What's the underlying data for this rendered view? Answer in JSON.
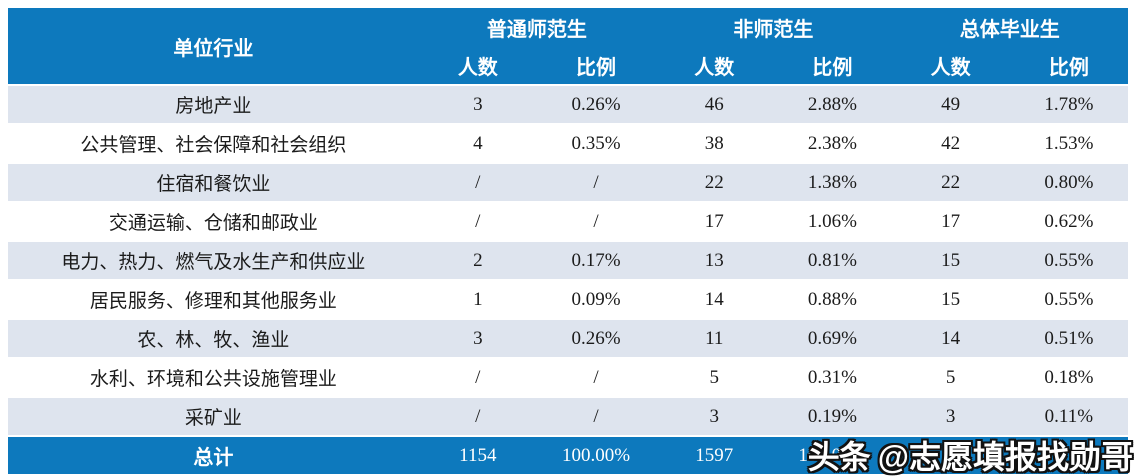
{
  "colors": {
    "header_bg": "#0d79bd",
    "stripe_bg": "#dee4ee",
    "row_bg": "#ffffff",
    "total_bg": "#0d79bd",
    "header_text": "#ffffff",
    "body_text": "#1b1b1b"
  },
  "chart_data": {
    "type": "table",
    "header": {
      "industry_label": "单位行业",
      "groups": [
        "普通师范生",
        "非师范生",
        "总体毕业生"
      ],
      "sub_labels": [
        "人数",
        "比例",
        "人数",
        "比例",
        "人数",
        "比例"
      ]
    },
    "rows": [
      {
        "industry": "房地产业",
        "cells": [
          "3",
          "0.26%",
          "46",
          "2.88%",
          "49",
          "1.78%"
        ]
      },
      {
        "industry": "公共管理、社会保障和社会组织",
        "cells": [
          "4",
          "0.35%",
          "38",
          "2.38%",
          "42",
          "1.53%"
        ]
      },
      {
        "industry": "住宿和餐饮业",
        "cells": [
          "/",
          "/",
          "22",
          "1.38%",
          "22",
          "0.80%"
        ]
      },
      {
        "industry": "交通运输、仓储和邮政业",
        "cells": [
          "/",
          "/",
          "17",
          "1.06%",
          "17",
          "0.62%"
        ]
      },
      {
        "industry": "电力、热力、燃气及水生产和供应业",
        "cells": [
          "2",
          "0.17%",
          "13",
          "0.81%",
          "15",
          "0.55%"
        ]
      },
      {
        "industry": "居民服务、修理和其他服务业",
        "cells": [
          "1",
          "0.09%",
          "14",
          "0.88%",
          "15",
          "0.55%"
        ]
      },
      {
        "industry": "农、林、牧、渔业",
        "cells": [
          "3",
          "0.26%",
          "11",
          "0.69%",
          "14",
          "0.51%"
        ]
      },
      {
        "industry": "水利、环境和公共设施管理业",
        "cells": [
          "/",
          "/",
          "5",
          "0.31%",
          "5",
          "0.18%"
        ]
      },
      {
        "industry": "采矿业",
        "cells": [
          "/",
          "/",
          "3",
          "0.19%",
          "3",
          "0.11%"
        ]
      }
    ],
    "total": {
      "label": "总计",
      "cells": [
        "1154",
        "100.00%",
        "1597",
        "100.00%",
        "",
        ""
      ]
    }
  },
  "watermark": {
    "logo": "头条",
    "handle": "@志愿填报找勋哥"
  }
}
